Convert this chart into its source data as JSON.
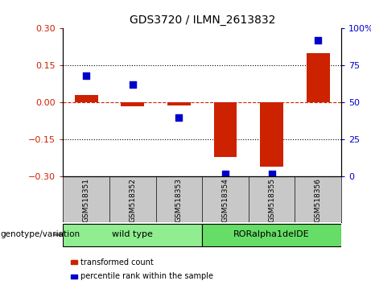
{
  "title": "GDS3720 / ILMN_2613832",
  "samples": [
    "GSM518351",
    "GSM518352",
    "GSM518353",
    "GSM518354",
    "GSM518355",
    "GSM518356"
  ],
  "red_bars": [
    0.03,
    -0.015,
    -0.01,
    -0.22,
    -0.26,
    0.2
  ],
  "blue_dots": [
    0.68,
    0.62,
    0.4,
    0.02,
    0.02,
    0.92
  ],
  "groups": [
    {
      "label": "wild type",
      "indices": [
        0,
        1,
        2
      ],
      "color": "#90EE90"
    },
    {
      "label": "RORalpha1delDE",
      "indices": [
        3,
        4,
        5
      ],
      "color": "#66DD66"
    }
  ],
  "genotype_label": "genotype/variation",
  "left_ylim": [
    -0.3,
    0.3
  ],
  "right_ylim": [
    0,
    1.0
  ],
  "left_yticks": [
    -0.3,
    -0.15,
    0.0,
    0.15,
    0.3
  ],
  "right_yticks": [
    0,
    0.25,
    0.5,
    0.75,
    1.0
  ],
  "right_yticklabels": [
    "0",
    "25",
    "50",
    "75",
    "100%"
  ],
  "left_color": "#CC2200",
  "right_color": "#0000CC",
  "legend_red": "transformed count",
  "legend_blue": "percentile rank within the sample",
  "bar_width": 0.5,
  "dot_size": 40,
  "sample_box_color": "#C8C8C8",
  "background_color": "#ffffff"
}
